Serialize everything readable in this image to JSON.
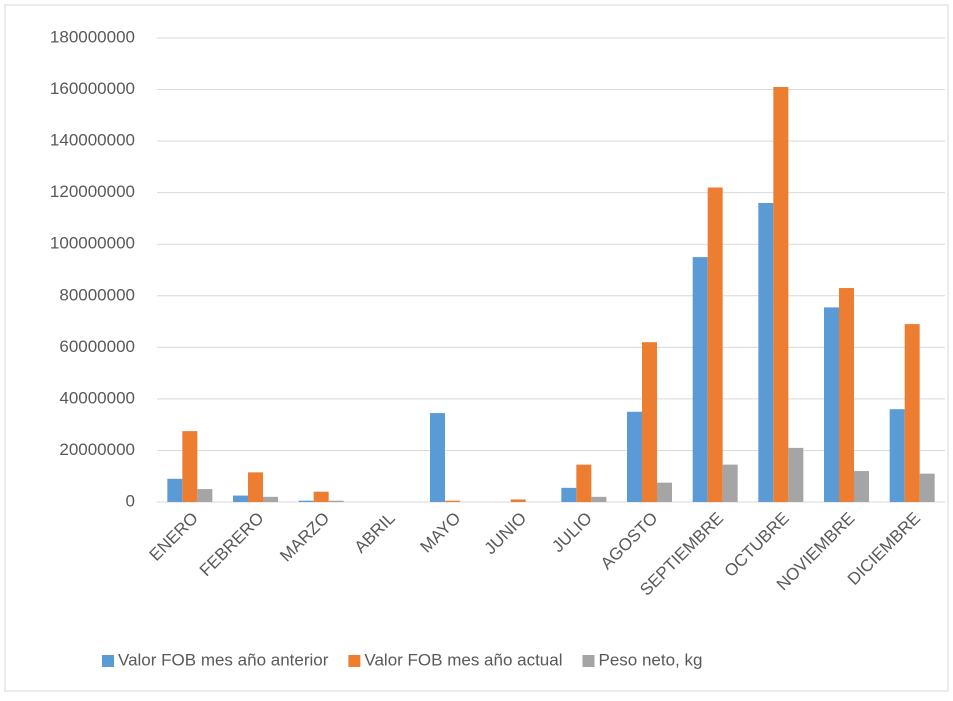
{
  "chart_data": {
    "type": "bar",
    "categories": [
      "ENERO",
      "FEBRERO",
      "MARZO",
      "ABRIL",
      "MAYO",
      "JUNIO",
      "JULIO",
      "AGOSTO",
      "SEPTIEMBRE",
      "OCTUBRE",
      "NOVIEMBRE",
      "DICIEMBRE"
    ],
    "series": [
      {
        "name": "Valor FOB mes año anterior",
        "color": "#5b9bd5",
        "values": [
          9000000,
          2500000,
          500000,
          0,
          34500000,
          0,
          5500000,
          35000000,
          95000000,
          116000000,
          75500000,
          36000000
        ]
      },
      {
        "name": "Valor FOB mes año actual",
        "color": "#ed7d31",
        "values": [
          27500000,
          11500000,
          4000000,
          0,
          500000,
          1000000,
          14500000,
          62000000,
          122000000,
          161000000,
          83000000,
          69000000
        ]
      },
      {
        "name": "Peso neto, kg",
        "color": "#a5a5a5",
        "values": [
          5000000,
          2000000,
          500000,
          0,
          0,
          0,
          2000000,
          7500000,
          14500000,
          21000000,
          12000000,
          11000000
        ]
      }
    ],
    "ylim": [
      0,
      180000000
    ],
    "yticks": [
      0,
      20000000,
      40000000,
      60000000,
      80000000,
      100000000,
      120000000,
      140000000,
      160000000,
      180000000
    ],
    "grid": true,
    "legend": "bottom"
  }
}
